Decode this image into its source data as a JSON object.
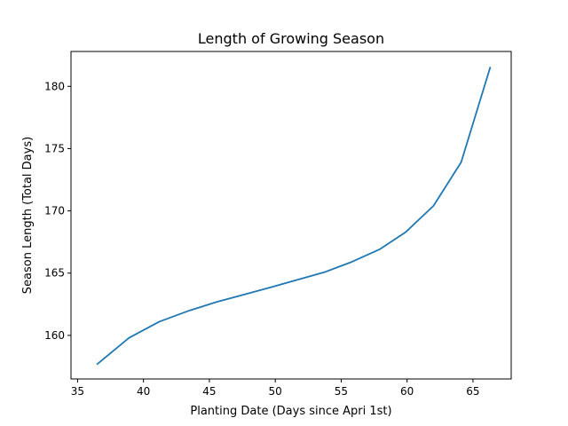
{
  "chart_data": {
    "type": "line",
    "title": "Length of Growing Season",
    "xlabel": "Planting Date (Days since Apri 1st)",
    "ylabel": "Season Length (Total Days)",
    "xlim": [
      34.5,
      67.9
    ],
    "ylim": [
      156.5,
      182.8
    ],
    "xticks": [
      35,
      40,
      45,
      50,
      55,
      60,
      65
    ],
    "yticks": [
      160,
      165,
      170,
      175,
      180
    ],
    "grid": false,
    "line_color": "#1f77b4",
    "series": [
      {
        "x": [
          36.5,
          38.9,
          41.2,
          43.5,
          45.6,
          47.7,
          49.8,
          51.8,
          53.8,
          55.8,
          57.9,
          59.9,
          62.0,
          64.1,
          66.3
        ],
        "values": [
          157.7,
          159.8,
          161.1,
          162.0,
          162.7,
          163.3,
          163.9,
          164.5,
          165.1,
          165.9,
          166.9,
          168.3,
          170.4,
          173.9,
          181.5
        ]
      }
    ]
  }
}
